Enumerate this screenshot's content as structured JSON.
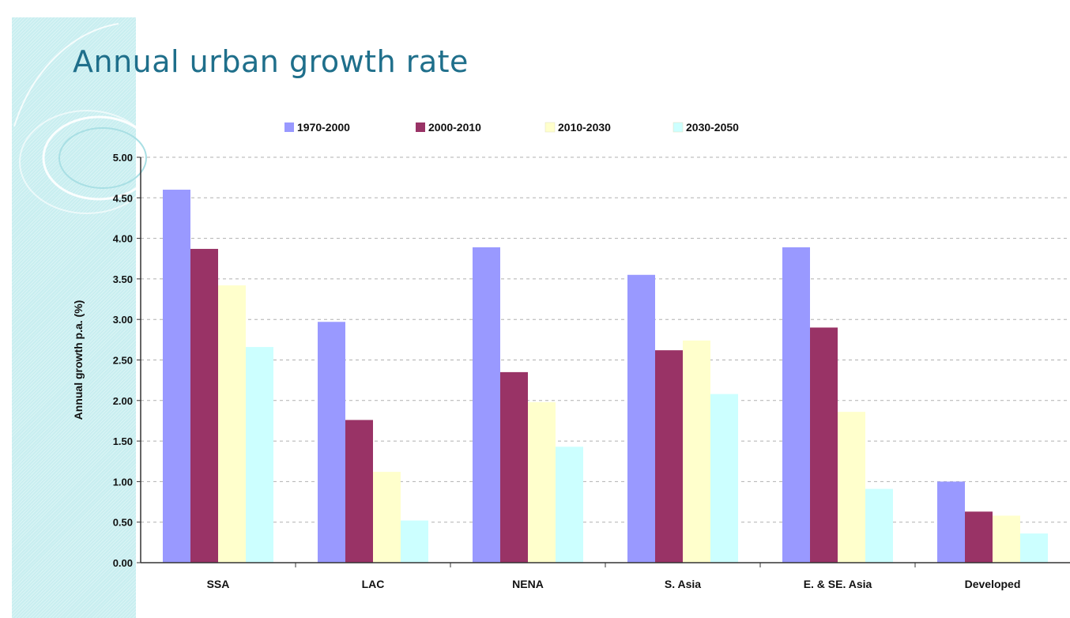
{
  "slide": {
    "title": "Annual urban growth rate"
  },
  "chart_data": {
    "type": "bar",
    "title": "",
    "ylabel": "Annual growth p.a. (%)",
    "xlabel": "",
    "ylim": [
      0,
      5
    ],
    "yticks": [
      "0.00",
      "0.50",
      "1.00",
      "1.50",
      "2.00",
      "2.50",
      "3.00",
      "3.50",
      "4.00",
      "4.50",
      "5.00"
    ],
    "grid": true,
    "legend_position": "top",
    "categories": [
      "SSA",
      "LAC",
      "NENA",
      "S. Asia",
      "E. & SE. Asia",
      "Developed"
    ],
    "series": [
      {
        "name": "1970-2000",
        "color": "#9999ff",
        "values": [
          4.6,
          2.97,
          3.89,
          3.55,
          3.89,
          1.0
        ]
      },
      {
        "name": "2000-2010",
        "color": "#993366",
        "values": [
          3.87,
          1.76,
          2.35,
          2.62,
          2.9,
          0.63
        ]
      },
      {
        "name": "2010-2030",
        "color": "#ffffcc",
        "values": [
          3.42,
          1.12,
          1.98,
          2.74,
          1.86,
          0.58
        ]
      },
      {
        "name": "2030-2050",
        "color": "#ccffff",
        "values": [
          2.66,
          0.52,
          1.43,
          2.08,
          0.91,
          0.36
        ]
      }
    ]
  }
}
